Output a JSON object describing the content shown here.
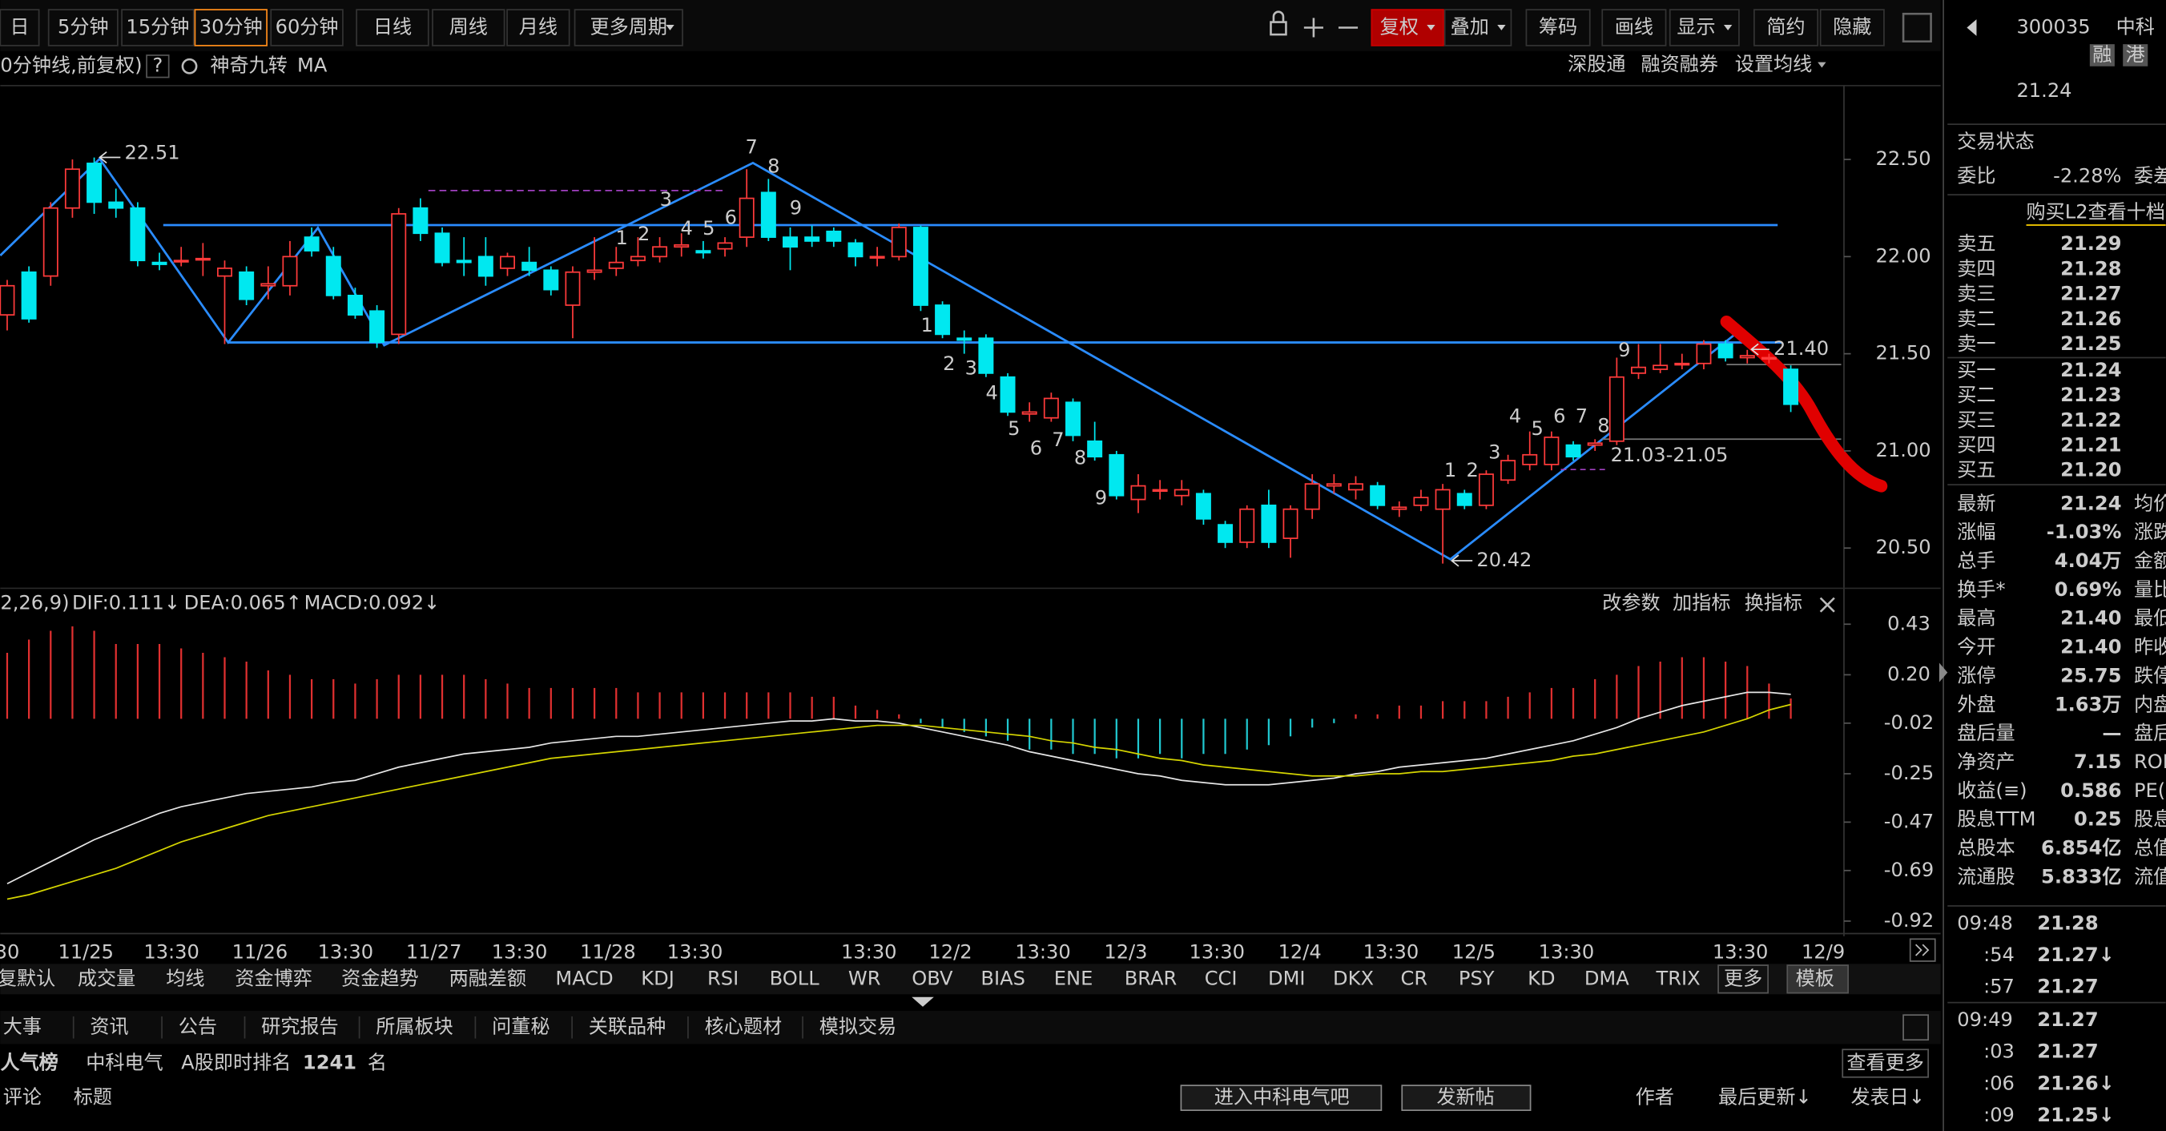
{
  "toolbar": {
    "periods": [
      "日",
      "5分钟",
      "15分钟",
      "30分钟",
      "60分钟",
      "日线",
      "周线",
      "月线",
      "更多周期"
    ],
    "tools": [
      "复权",
      "叠加",
      "筹码",
      "画线",
      "显示",
      "简约",
      "隐藏"
    ]
  },
  "chart_header": {
    "title": "0分钟线,前复权)",
    "help": "?",
    "items": [
      "神奇九转",
      "MA"
    ],
    "links": [
      "深股通",
      "融资融券",
      "设置均线"
    ]
  },
  "chart_data": [
    {
      "type": "candlestick",
      "up_color": "#ff3b3b",
      "down_color": "#00e8f0",
      "x_labels": [
        "30",
        "11/25",
        "13:30",
        "11/26",
        "13:30",
        "11/27",
        "13:30",
        "11/28",
        "13:30",
        "13:30",
        "12/2",
        "13:30",
        "12/3",
        "13:30",
        "12/4",
        "13:30",
        "12/5",
        "13:30",
        "13:30",
        "12/9"
      ],
      "values": [
        [
          21.7,
          21.88,
          21.62,
          21.85
        ],
        [
          21.92,
          21.95,
          21.66,
          21.68
        ],
        [
          21.9,
          22.28,
          21.85,
          22.25
        ],
        [
          22.25,
          22.5,
          22.2,
          22.45
        ],
        [
          22.48,
          22.51,
          22.22,
          22.28
        ],
        [
          22.28,
          22.35,
          22.2,
          22.25
        ],
        [
          22.25,
          22.28,
          21.95,
          21.98
        ],
        [
          21.97,
          22.02,
          21.93,
          21.96
        ],
        [
          21.98,
          22.05,
          21.95,
          21.98
        ],
        [
          21.99,
          22.07,
          21.9,
          21.99
        ],
        [
          21.9,
          21.98,
          21.55,
          21.94
        ],
        [
          21.92,
          21.95,
          21.75,
          21.78
        ],
        [
          21.85,
          21.95,
          21.78,
          21.86
        ],
        [
          21.85,
          22.08,
          21.8,
          22.0
        ],
        [
          22.1,
          22.15,
          22.0,
          22.03
        ],
        [
          22.0,
          22.05,
          21.78,
          21.8
        ],
        [
          21.8,
          21.84,
          21.68,
          21.7
        ],
        [
          21.72,
          21.75,
          21.53,
          21.56
        ],
        [
          21.6,
          22.25,
          21.55,
          22.22
        ],
        [
          22.25,
          22.3,
          22.08,
          22.12
        ],
        [
          22.12,
          22.15,
          21.95,
          21.97
        ],
        [
          21.98,
          22.1,
          21.9,
          21.97
        ],
        [
          22.0,
          22.1,
          21.85,
          21.9
        ],
        [
          21.94,
          22.02,
          21.9,
          22.0
        ],
        [
          21.97,
          22.05,
          21.9,
          21.93
        ],
        [
          21.93,
          21.95,
          21.8,
          21.83
        ],
        [
          21.75,
          21.95,
          21.58,
          21.92
        ],
        [
          21.92,
          22.1,
          21.88,
          21.93
        ],
        [
          21.94,
          22.05,
          21.9,
          21.97
        ],
        [
          21.98,
          22.1,
          21.95,
          22.0
        ],
        [
          22.0,
          22.1,
          21.97,
          22.05
        ],
        [
          22.05,
          22.12,
          22.0,
          22.06
        ],
        [
          22.03,
          22.08,
          21.99,
          22.02
        ],
        [
          22.04,
          22.1,
          22.0,
          22.07
        ],
        [
          22.1,
          22.45,
          22.05,
          22.3
        ],
        [
          22.33,
          22.4,
          22.08,
          22.1
        ],
        [
          22.1,
          22.15,
          21.93,
          22.05
        ],
        [
          22.1,
          22.16,
          22.05,
          22.08
        ],
        [
          22.13,
          22.15,
          22.05,
          22.08
        ],
        [
          22.07,
          22.09,
          21.95,
          22.0
        ],
        [
          22.0,
          22.05,
          21.95,
          22.0
        ],
        [
          22.0,
          22.17,
          21.98,
          22.15
        ],
        [
          22.15,
          22.16,
          21.72,
          21.75
        ],
        [
          21.75,
          21.77,
          21.58,
          21.6
        ],
        [
          21.58,
          21.62,
          21.5,
          21.57
        ],
        [
          21.58,
          21.6,
          21.38,
          21.4
        ],
        [
          21.38,
          21.4,
          21.18,
          21.2
        ],
        [
          21.19,
          21.25,
          21.15,
          21.2
        ],
        [
          21.17,
          21.3,
          21.15,
          21.27
        ],
        [
          21.25,
          21.27,
          21.05,
          21.08
        ],
        [
          21.05,
          21.15,
          20.95,
          20.97
        ],
        [
          20.98,
          21.0,
          20.75,
          20.77
        ],
        [
          20.75,
          20.88,
          20.68,
          20.82
        ],
        [
          20.8,
          20.85,
          20.75,
          20.8
        ],
        [
          20.77,
          20.85,
          20.72,
          20.8
        ],
        [
          20.78,
          20.8,
          20.62,
          20.65
        ],
        [
          20.62,
          20.64,
          20.5,
          20.53
        ],
        [
          20.53,
          20.72,
          20.5,
          20.7
        ],
        [
          20.72,
          20.8,
          20.5,
          20.53
        ],
        [
          20.55,
          20.72,
          20.45,
          20.7
        ],
        [
          20.7,
          20.88,
          20.65,
          20.83
        ],
        [
          20.82,
          20.88,
          20.78,
          20.83
        ],
        [
          20.8,
          20.87,
          20.75,
          20.83
        ],
        [
          20.82,
          20.84,
          20.7,
          20.72
        ],
        [
          20.7,
          20.74,
          20.66,
          20.71
        ],
        [
          20.72,
          20.8,
          20.69,
          20.76
        ],
        [
          20.7,
          20.83,
          20.42,
          20.8
        ],
        [
          20.78,
          20.8,
          20.7,
          20.72
        ],
        [
          20.72,
          20.9,
          20.7,
          20.88
        ],
        [
          20.85,
          20.98,
          20.83,
          20.95
        ],
        [
          20.93,
          21.1,
          20.9,
          20.98
        ],
        [
          20.93,
          21.1,
          20.9,
          21.07
        ],
        [
          21.03,
          21.05,
          20.95,
          20.97
        ],
        [
          21.03,
          21.06,
          21.0,
          21.04
        ],
        [
          21.05,
          21.48,
          21.03,
          21.38
        ],
        [
          21.4,
          21.55,
          21.37,
          21.43
        ],
        [
          21.42,
          21.55,
          21.4,
          21.44
        ],
        [
          21.45,
          21.5,
          21.42,
          21.45
        ],
        [
          21.45,
          21.57,
          21.42,
          21.55
        ],
        [
          21.55,
          21.57,
          21.46,
          21.48
        ],
        [
          21.48,
          21.52,
          21.45,
          21.49
        ],
        [
          21.48,
          21.5,
          21.45,
          21.48
        ],
        [
          21.42,
          21.44,
          21.2,
          21.24
        ]
      ],
      "ylim": [
        20.3,
        22.88
      ],
      "yticks": [
        {
          "value": 22.5,
          "label": "22.50"
        },
        {
          "value": 22.0,
          "label": "22.00"
        },
        {
          "value": 21.5,
          "label": "21.50"
        },
        {
          "value": 21.0,
          "label": "21.00"
        },
        {
          "value": 20.5,
          "label": "20.50"
        }
      ],
      "annotations": [
        "22.51",
        "20.42",
        "21.40",
        "21.03-21.05"
      ],
      "td_labels": [
        "1",
        "2",
        "3",
        "4",
        "5",
        "6",
        "7",
        "8",
        "9",
        "1",
        "2",
        "3",
        "4",
        "5",
        "6",
        "7",
        "8",
        "9",
        "1",
        "2",
        "3",
        "4",
        "5",
        "6",
        "7",
        "8",
        "9"
      ]
    },
    {
      "type": "macd",
      "params": "2,26,9)",
      "up_color": "#e03030",
      "down_color": "#20c8d0",
      "series": [
        {
          "name": "DIF:0.111↓",
          "color": "#e6e6e6",
          "values": [
            -0.75,
            -0.7,
            -0.65,
            -0.6,
            -0.55,
            -0.51,
            -0.47,
            -0.43,
            -0.4,
            -0.38,
            -0.36,
            -0.34,
            -0.33,
            -0.32,
            -0.31,
            -0.29,
            -0.28,
            -0.25,
            -0.22,
            -0.2,
            -0.18,
            -0.16,
            -0.15,
            -0.14,
            -0.13,
            -0.11,
            -0.1,
            -0.09,
            -0.08,
            -0.08,
            -0.07,
            -0.06,
            -0.05,
            -0.04,
            -0.03,
            -0.02,
            -0.01,
            -0.01,
            0.0,
            -0.01,
            -0.01,
            -0.02,
            -0.04,
            -0.06,
            -0.08,
            -0.1,
            -0.12,
            -0.15,
            -0.17,
            -0.19,
            -0.21,
            -0.23,
            -0.25,
            -0.26,
            -0.28,
            -0.29,
            -0.3,
            -0.3,
            -0.3,
            -0.29,
            -0.28,
            -0.27,
            -0.25,
            -0.24,
            -0.22,
            -0.21,
            -0.2,
            -0.19,
            -0.18,
            -0.16,
            -0.14,
            -0.12,
            -0.1,
            -0.07,
            -0.04,
            0.0,
            0.03,
            0.06,
            0.08,
            0.1,
            0.12,
            0.12,
            0.111
          ]
        },
        {
          "name": "DEA:0.065↑",
          "color": "#d4d400",
          "values": [
            -0.82,
            -0.8,
            -0.77,
            -0.74,
            -0.71,
            -0.68,
            -0.64,
            -0.6,
            -0.56,
            -0.53,
            -0.5,
            -0.47,
            -0.44,
            -0.42,
            -0.4,
            -0.38,
            -0.36,
            -0.34,
            -0.32,
            -0.3,
            -0.28,
            -0.26,
            -0.24,
            -0.22,
            -0.2,
            -0.18,
            -0.17,
            -0.16,
            -0.15,
            -0.14,
            -0.13,
            -0.12,
            -0.11,
            -0.1,
            -0.09,
            -0.08,
            -0.07,
            -0.06,
            -0.05,
            -0.04,
            -0.03,
            -0.03,
            -0.03,
            -0.04,
            -0.05,
            -0.06,
            -0.07,
            -0.08,
            -0.1,
            -0.11,
            -0.13,
            -0.14,
            -0.16,
            -0.18,
            -0.19,
            -0.21,
            -0.22,
            -0.23,
            -0.24,
            -0.25,
            -0.26,
            -0.26,
            -0.26,
            -0.25,
            -0.25,
            -0.24,
            -0.24,
            -0.23,
            -0.22,
            -0.21,
            -0.2,
            -0.19,
            -0.17,
            -0.16,
            -0.14,
            -0.12,
            -0.1,
            -0.08,
            -0.06,
            -0.03,
            0.0,
            0.04,
            0.065
          ]
        },
        {
          "name": "MACD:0.092↓",
          "color": "#ff33ff",
          "values": [
            0.3,
            0.36,
            0.4,
            0.42,
            0.4,
            0.34,
            0.34,
            0.34,
            0.32,
            0.3,
            0.28,
            0.26,
            0.22,
            0.2,
            0.18,
            0.18,
            0.16,
            0.18,
            0.2,
            0.2,
            0.2,
            0.2,
            0.18,
            0.16,
            0.14,
            0.14,
            0.14,
            0.14,
            0.14,
            0.12,
            0.12,
            0.12,
            0.12,
            0.12,
            0.12,
            0.12,
            0.12,
            0.1,
            0.1,
            0.06,
            0.04,
            0.02,
            -0.02,
            -0.04,
            -0.06,
            -0.08,
            -0.1,
            -0.14,
            -0.14,
            -0.16,
            -0.16,
            -0.18,
            -0.18,
            -0.16,
            -0.18,
            -0.16,
            -0.16,
            -0.14,
            -0.12,
            -0.08,
            -0.04,
            -0.02,
            0.02,
            0.02,
            0.06,
            0.06,
            0.08,
            0.08,
            0.08,
            0.1,
            0.12,
            0.14,
            0.14,
            0.18,
            0.2,
            0.24,
            0.26,
            0.28,
            0.28,
            0.26,
            0.24,
            0.16,
            0.092
          ]
        }
      ],
      "ylim": [
        -0.92,
        0.43
      ],
      "yticks": [
        0.43,
        {
          "value": 0.2,
          "label": "0.20"
        },
        -0.02,
        -0.25,
        -0.47,
        -0.69,
        -0.92
      ],
      "buttons": [
        "改参数",
        "加指标",
        "换指标"
      ]
    }
  ],
  "indicator_tabs": [
    "复默认",
    "成交量",
    "均线",
    "资金博弈",
    "资金趋势",
    "两融差额",
    "MACD",
    "KDJ",
    "RSI",
    "BOLL",
    "WR",
    "OBV",
    "BIAS",
    "ENE",
    "BRAR",
    "CCI",
    "DMI",
    "DKX",
    "CR",
    "PSY",
    "KD",
    "DMA",
    "TRIX",
    "更多",
    "模板"
  ],
  "info_tabs": [
    "大事",
    "资讯",
    "公告",
    "研究报告",
    "所属板块",
    "问董秘",
    "关联品种",
    "核心题材",
    "模拟交易"
  ],
  "ranking": {
    "title": "人气榜",
    "name": "中科电气",
    "rank_label": "A股即时排名",
    "rank": "1241",
    "unit": "名",
    "more": "查看更多"
  },
  "comments": {
    "headers": [
      "评论",
      "标题"
    ],
    "buttons": [
      "进入中科电气吧",
      "发新帖"
    ],
    "columns": [
      "作者",
      "最后更新↓",
      "发表日↓"
    ]
  },
  "quote": {
    "code": "300035",
    "name": "中科",
    "tags": [
      "融",
      "港"
    ],
    "price": "21.24",
    "status": "交易状态",
    "ratio": [
      "委比",
      "-2.28%",
      "委差"
    ],
    "l2": "购买L2查看十档",
    "book": [
      [
        "卖五",
        "21.29"
      ],
      [
        "卖四",
        "21.28"
      ],
      [
        "卖三",
        "21.27"
      ],
      [
        "卖二",
        "21.26"
      ],
      [
        "卖一",
        "21.25"
      ],
      [
        "买一",
        "21.24"
      ],
      [
        "买二",
        "21.23"
      ],
      [
        "买三",
        "21.22"
      ],
      [
        "买四",
        "21.21"
      ],
      [
        "买五",
        "21.20"
      ]
    ],
    "stats": [
      [
        "最新",
        "21.24",
        "均价"
      ],
      [
        "涨幅",
        "-1.03%",
        "涨跌"
      ],
      [
        "总手",
        "4.04万",
        "金额"
      ],
      [
        "换手*",
        "0.69%",
        "量比"
      ],
      [
        "最高",
        "21.40",
        "最低"
      ],
      [
        "今开",
        "21.40",
        "昨收"
      ],
      [
        "涨停",
        "25.75",
        "跌停"
      ],
      [
        "外盘",
        "1.63万",
        "内盘"
      ],
      [
        "盘后量",
        "—",
        "盘后"
      ],
      [
        "净资产",
        "7.15",
        "ROE"
      ],
      [
        "收益(≡)",
        "0.586",
        "PE("
      ],
      [
        "股息TTM",
        "0.25",
        "股息"
      ],
      [
        "总股本",
        "6.854亿",
        "总值"
      ],
      [
        "流通股",
        "5.833亿",
        "流值"
      ]
    ],
    "ticks": [
      [
        "09:48",
        "21.28"
      ],
      [
        ":54",
        "21.27↓"
      ],
      [
        ":57",
        "21.27"
      ],
      [
        "09:49",
        "21.27"
      ],
      [
        ":03",
        "21.27"
      ],
      [
        ":06",
        "21.26↓"
      ],
      [
        ":09",
        "21.25↓"
      ]
    ]
  }
}
